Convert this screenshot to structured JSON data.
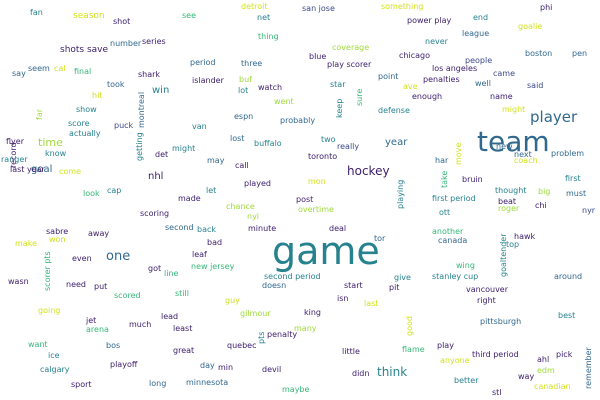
{
  "colors": {
    "navy": "#3b1c6b",
    "indigo": "#3d4a89",
    "blue": "#31688e",
    "teal": "#26828e",
    "green": "#35b779",
    "lime": "#9fda3a",
    "yellow": "#d2e21b"
  },
  "words": [
    {
      "text": "game",
      "color": "teal",
      "size": 38
    },
    {
      "text": "team",
      "color": "blue",
      "size": 28
    },
    {
      "text": "player",
      "color": "blue",
      "size": 15
    },
    {
      "text": "one",
      "color": "blue",
      "size": 13
    },
    {
      "text": "hockey",
      "color": "navy",
      "size": 12
    },
    {
      "text": "think",
      "color": "teal",
      "size": 12
    },
    {
      "text": "time",
      "color": "lime",
      "size": 11
    },
    {
      "text": "year",
      "color": "blue",
      "size": 10
    },
    {
      "text": "goal",
      "color": "blue",
      "size": 10
    },
    {
      "text": "win",
      "color": "teal",
      "size": 10
    },
    {
      "text": "nhl",
      "color": "navy",
      "size": 10
    },
    {
      "text": "season",
      "color": "yellow",
      "size": 9
    },
    {
      "text": "shots save",
      "color": "navy",
      "size": 9
    },
    {
      "text": "fan",
      "color": "teal",
      "size": 8
    },
    {
      "text": "shot",
      "color": "navy",
      "size": 8
    },
    {
      "text": "see",
      "color": "green",
      "size": 8
    },
    {
      "text": "detroit",
      "color": "yellow",
      "size": 8
    },
    {
      "text": "net",
      "color": "teal",
      "size": 8
    },
    {
      "text": "san jose",
      "color": "indigo",
      "size": 8
    },
    {
      "text": "something",
      "color": "yellow",
      "size": 8
    },
    {
      "text": "phi",
      "color": "navy",
      "size": 8
    },
    {
      "text": "power play",
      "color": "navy",
      "size": 8
    },
    {
      "text": "end",
      "color": "teal",
      "size": 8
    },
    {
      "text": "goalie",
      "color": "yellow",
      "size": 8
    },
    {
      "text": "league",
      "color": "blue",
      "size": 8
    },
    {
      "text": "never",
      "color": "teal",
      "size": 8
    },
    {
      "text": "thing",
      "color": "green",
      "size": 8
    },
    {
      "text": "number",
      "color": "blue",
      "size": 8
    },
    {
      "text": "series",
      "color": "navy",
      "size": 8
    },
    {
      "text": "coverage",
      "color": "lime",
      "size": 8
    },
    {
      "text": "boston",
      "color": "blue",
      "size": 8
    },
    {
      "text": "pen",
      "color": "blue",
      "size": 8
    },
    {
      "text": "chicago",
      "color": "navy",
      "size": 8
    },
    {
      "text": "people",
      "color": "indigo",
      "size": 8
    },
    {
      "text": "blue",
      "color": "navy",
      "size": 8
    },
    {
      "text": "play scorer",
      "color": "navy",
      "size": 8
    },
    {
      "text": "los angeles",
      "color": "navy",
      "size": 8
    },
    {
      "text": "came",
      "color": "indigo",
      "size": 8
    },
    {
      "text": "period",
      "color": "blue",
      "size": 8
    },
    {
      "text": "three",
      "color": "blue",
      "size": 8
    },
    {
      "text": "final",
      "color": "green",
      "size": 8
    },
    {
      "text": "say",
      "color": "blue",
      "size": 8
    },
    {
      "text": "seem",
      "color": "blue",
      "size": 8
    },
    {
      "text": "cal",
      "color": "yellow",
      "size": 8
    },
    {
      "text": "shark",
      "color": "navy",
      "size": 8
    },
    {
      "text": "islander",
      "color": "navy",
      "size": 8
    },
    {
      "text": "buf",
      "color": "lime",
      "size": 8
    },
    {
      "text": "point",
      "color": "blue",
      "size": 8
    },
    {
      "text": "penalties",
      "color": "navy",
      "size": 8
    },
    {
      "text": "well",
      "color": "blue",
      "size": 8
    },
    {
      "text": "said",
      "color": "indigo",
      "size": 8
    },
    {
      "text": "took",
      "color": "blue",
      "size": 8
    },
    {
      "text": "lot",
      "color": "teal",
      "size": 8
    },
    {
      "text": "watch",
      "color": "navy",
      "size": 8
    },
    {
      "text": "star",
      "color": "teal",
      "size": 8
    },
    {
      "text": "ave",
      "color": "yellow",
      "size": 8
    },
    {
      "text": "enough",
      "color": "navy",
      "size": 8
    },
    {
      "text": "name",
      "color": "navy",
      "size": 8
    },
    {
      "text": "hit",
      "color": "yellow",
      "size": 8
    },
    {
      "text": "montreal",
      "color": "blue",
      "size": 8
    },
    {
      "text": "went",
      "color": "lime",
      "size": 8
    },
    {
      "text": "keep",
      "color": "teal",
      "size": 8
    },
    {
      "text": "sure",
      "color": "green",
      "size": 8
    },
    {
      "text": "defense",
      "color": "teal",
      "size": 8
    },
    {
      "text": "might",
      "color": "yellow",
      "size": 8
    },
    {
      "text": "show",
      "color": "teal",
      "size": 8
    },
    {
      "text": "far",
      "color": "lime",
      "size": 8
    },
    {
      "text": "espn",
      "color": "blue",
      "size": 8
    },
    {
      "text": "score",
      "color": "teal",
      "size": 8
    },
    {
      "text": "puck",
      "color": "indigo",
      "size": 8
    },
    {
      "text": "van",
      "color": "teal",
      "size": 8
    },
    {
      "text": "probably",
      "color": "blue",
      "size": 8
    },
    {
      "text": "actually",
      "color": "teal",
      "size": 8
    },
    {
      "text": "flyer",
      "color": "navy",
      "size": 8
    },
    {
      "text": "record",
      "color": "navy",
      "size": 8
    },
    {
      "text": "getting",
      "color": "teal",
      "size": 8
    },
    {
      "text": "lost",
      "color": "blue",
      "size": 8
    },
    {
      "text": "buffalo",
      "color": "teal",
      "size": 8
    },
    {
      "text": "two",
      "color": "teal",
      "size": 8
    },
    {
      "text": "really",
      "color": "indigo",
      "size": 8
    },
    {
      "text": "know",
      "color": "teal",
      "size": 8
    },
    {
      "text": "might",
      "color": "teal",
      "size": 8
    },
    {
      "text": "det",
      "color": "navy",
      "size": 8
    },
    {
      "text": "may",
      "color": "blue",
      "size": 8
    },
    {
      "text": "call",
      "color": "navy",
      "size": 8
    },
    {
      "text": "toronto",
      "color": "navy",
      "size": 8
    },
    {
      "text": "har",
      "color": "blue",
      "size": 8
    },
    {
      "text": "move",
      "color": "yellow",
      "size": 8
    },
    {
      "text": "new",
      "color": "blue",
      "size": 8
    },
    {
      "text": "next",
      "color": "blue",
      "size": 8
    },
    {
      "text": "coach",
      "color": "yellow",
      "size": 8
    },
    {
      "text": "problem",
      "color": "blue",
      "size": 8
    },
    {
      "text": "ranger",
      "color": "teal",
      "size": 8
    },
    {
      "text": "come",
      "color": "yellow",
      "size": 8
    },
    {
      "text": "last year",
      "color": "navy",
      "size": 8
    },
    {
      "text": "look",
      "color": "green",
      "size": 8
    },
    {
      "text": "cap",
      "color": "teal",
      "size": 8
    },
    {
      "text": "mon",
      "color": "yellow",
      "size": 8
    },
    {
      "text": "take",
      "color": "green",
      "size": 8
    },
    {
      "text": "bruin",
      "color": "navy",
      "size": 8
    },
    {
      "text": "first",
      "color": "teal",
      "size": 8
    },
    {
      "text": "thought",
      "color": "teal",
      "size": 8
    },
    {
      "text": "big",
      "color": "lime",
      "size": 8
    },
    {
      "text": "must",
      "color": "blue",
      "size": 8
    },
    {
      "text": "played",
      "color": "navy",
      "size": 8
    },
    {
      "text": "let",
      "color": "teal",
      "size": 8
    },
    {
      "text": "playing",
      "color": "teal",
      "size": 8
    },
    {
      "text": "beat",
      "color": "navy",
      "size": 8
    },
    {
      "text": "roger",
      "color": "lime",
      "size": 8
    },
    {
      "text": "chi",
      "color": "navy",
      "size": 8
    },
    {
      "text": "nyr",
      "color": "indigo",
      "size": 8
    },
    {
      "text": "scoring",
      "color": "navy",
      "size": 8
    },
    {
      "text": "made",
      "color": "navy",
      "size": 8
    },
    {
      "text": "post",
      "color": "navy",
      "size": 8
    },
    {
      "text": "first period",
      "color": "teal",
      "size": 8
    },
    {
      "text": "sabre",
      "color": "navy",
      "size": 8
    },
    {
      "text": "chance",
      "color": "lime",
      "size": 8
    },
    {
      "text": "nyi",
      "color": "lime",
      "size": 8
    },
    {
      "text": "overtime",
      "color": "lime",
      "size": 8
    },
    {
      "text": "ott",
      "color": "teal",
      "size": 8
    },
    {
      "text": "away",
      "color": "navy",
      "size": 8
    },
    {
      "text": "second",
      "color": "blue",
      "size": 8
    },
    {
      "text": "back",
      "color": "teal",
      "size": 8
    },
    {
      "text": "minute",
      "color": "navy",
      "size": 8
    },
    {
      "text": "deal",
      "color": "navy",
      "size": 8
    },
    {
      "text": "another",
      "color": "green",
      "size": 8
    },
    {
      "text": "make",
      "color": "yellow",
      "size": 8
    },
    {
      "text": "won",
      "color": "yellow",
      "size": 8
    },
    {
      "text": "bad",
      "color": "navy",
      "size": 8
    },
    {
      "text": "tor",
      "color": "blue",
      "size": 8
    },
    {
      "text": "canada",
      "color": "blue",
      "size": 8
    },
    {
      "text": "hawk",
      "color": "navy",
      "size": 8
    },
    {
      "text": "top",
      "color": "teal",
      "size": 8
    },
    {
      "text": "goaltender",
      "color": "teal",
      "size": 8
    },
    {
      "text": "scorer pts",
      "color": "green",
      "size": 8
    },
    {
      "text": "even",
      "color": "navy",
      "size": 8
    },
    {
      "text": "leaf",
      "color": "navy",
      "size": 8
    },
    {
      "text": "new jersey",
      "color": "green",
      "size": 8
    },
    {
      "text": "got",
      "color": "navy",
      "size": 8
    },
    {
      "text": "line",
      "color": "green",
      "size": 8
    },
    {
      "text": "wing",
      "color": "green",
      "size": 8
    },
    {
      "text": "wasn",
      "color": "navy",
      "size": 8
    },
    {
      "text": "need",
      "color": "navy",
      "size": 8
    },
    {
      "text": "put",
      "color": "navy",
      "size": 8
    },
    {
      "text": "second period",
      "color": "teal",
      "size": 8
    },
    {
      "text": "doesn",
      "color": "blue",
      "size": 8
    },
    {
      "text": "give",
      "color": "teal",
      "size": 8
    },
    {
      "text": "stanley cup",
      "color": "teal",
      "size": 8
    },
    {
      "text": "around",
      "color": "blue",
      "size": 8
    },
    {
      "text": "scored",
      "color": "green",
      "size": 8
    },
    {
      "text": "still",
      "color": "green",
      "size": 8
    },
    {
      "text": "start",
      "color": "navy",
      "size": 8
    },
    {
      "text": "pit",
      "color": "navy",
      "size": 8
    },
    {
      "text": "vancouver",
      "color": "navy",
      "size": 8
    },
    {
      "text": "going",
      "color": "yellow",
      "size": 8
    },
    {
      "text": "guy",
      "color": "yellow",
      "size": 8
    },
    {
      "text": "isn",
      "color": "navy",
      "size": 8
    },
    {
      "text": "last",
      "color": "yellow",
      "size": 8
    },
    {
      "text": "right",
      "color": "navy",
      "size": 8
    },
    {
      "text": "jet",
      "color": "navy",
      "size": 8
    },
    {
      "text": "lead",
      "color": "navy",
      "size": 8
    },
    {
      "text": "gilmour",
      "color": "lime",
      "size": 8
    },
    {
      "text": "king",
      "color": "navy",
      "size": 8
    },
    {
      "text": "best",
      "color": "teal",
      "size": 8
    },
    {
      "text": "arena",
      "color": "green",
      "size": 8
    },
    {
      "text": "much",
      "color": "navy",
      "size": 8
    },
    {
      "text": "least",
      "color": "navy",
      "size": 8
    },
    {
      "text": "pts",
      "color": "teal",
      "size": 8
    },
    {
      "text": "penalty",
      "color": "navy",
      "size": 8
    },
    {
      "text": "many",
      "color": "lime",
      "size": 8
    },
    {
      "text": "good",
      "color": "yellow",
      "size": 8
    },
    {
      "text": "pittsburgh",
      "color": "blue",
      "size": 8
    },
    {
      "text": "bos",
      "color": "blue",
      "size": 8
    },
    {
      "text": "quebec",
      "color": "navy",
      "size": 8
    },
    {
      "text": "want",
      "color": "green",
      "size": 8
    },
    {
      "text": "great",
      "color": "navy",
      "size": 8
    },
    {
      "text": "little",
      "color": "navy",
      "size": 8
    },
    {
      "text": "flame",
      "color": "green",
      "size": 8
    },
    {
      "text": "play",
      "color": "navy",
      "size": 8
    },
    {
      "text": "third period",
      "color": "navy",
      "size": 8
    },
    {
      "text": "pick",
      "color": "navy",
      "size": 8
    },
    {
      "text": "ahl",
      "color": "navy",
      "size": 8
    },
    {
      "text": "ice",
      "color": "teal",
      "size": 8
    },
    {
      "text": "playoff",
      "color": "navy",
      "size": 8
    },
    {
      "text": "day",
      "color": "blue",
      "size": 8
    },
    {
      "text": "min",
      "color": "navy",
      "size": 8
    },
    {
      "text": "anyone",
      "color": "yellow",
      "size": 8
    },
    {
      "text": "edm",
      "color": "lime",
      "size": 8
    },
    {
      "text": "remember",
      "color": "blue",
      "size": 8
    },
    {
      "text": "calgary",
      "color": "teal",
      "size": 8
    },
    {
      "text": "devil",
      "color": "navy",
      "size": 8
    },
    {
      "text": "didn",
      "color": "navy",
      "size": 8
    },
    {
      "text": "better",
      "color": "teal",
      "size": 8
    },
    {
      "text": "way",
      "color": "navy",
      "size": 8
    },
    {
      "text": "sport",
      "color": "navy",
      "size": 8
    },
    {
      "text": "long",
      "color": "blue",
      "size": 8
    },
    {
      "text": "minnesota",
      "color": "blue",
      "size": 8
    },
    {
      "text": "maybe",
      "color": "green",
      "size": 8
    },
    {
      "text": "stl",
      "color": "navy",
      "size": 8
    },
    {
      "text": "canadian",
      "color": "yellow",
      "size": 8
    }
  ]
}
